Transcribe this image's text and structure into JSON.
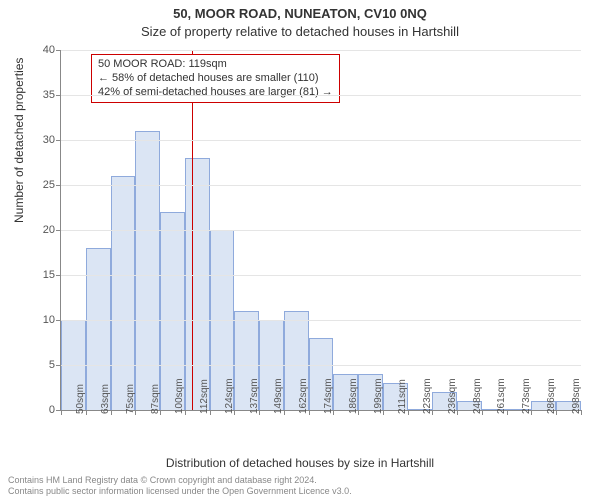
{
  "header": {
    "title": "50, MOOR ROAD, NUNEATON, CV10 0NQ",
    "subtitle": "Size of property relative to detached houses in Hartshill",
    "title_fontsize": 13,
    "subtitle_fontsize": 13
  },
  "chart": {
    "type": "histogram",
    "ylabel": "Number of detached properties",
    "xlabel": "Distribution of detached houses by size in Hartshill",
    "label_fontsize": 12,
    "ylim": [
      0,
      40
    ],
    "ytick_step": 5,
    "yticks": [
      0,
      5,
      10,
      15,
      20,
      25,
      30,
      35,
      40
    ],
    "grid_color": "#e5e5e5",
    "axis_color": "#888888",
    "background_color": "#ffffff",
    "bar_fill": "#dbe5f4",
    "bar_border": "#8faadc",
    "bar_width_ratio": 1.0,
    "categories": [
      "50sqm",
      "63sqm",
      "75sqm",
      "87sqm",
      "100sqm",
      "112sqm",
      "124sqm",
      "137sqm",
      "149sqm",
      "162sqm",
      "174sqm",
      "186sqm",
      "199sqm",
      "211sqm",
      "223sqm",
      "236sqm",
      "248sqm",
      "261sqm",
      "273sqm",
      "286sqm",
      "298sqm"
    ],
    "values": [
      10,
      18,
      26,
      31,
      22,
      28,
      20,
      11,
      10,
      11,
      8,
      4,
      4,
      3,
      0,
      2,
      1,
      0,
      0,
      1,
      1
    ]
  },
  "marker": {
    "value_sqm": 119,
    "line_color": "#cc0000",
    "line_width": 1
  },
  "annotation": {
    "lines": [
      "50 MOOR ROAD: 119sqm",
      "← 58% of detached houses are smaller (110)",
      "42% of semi-detached houses are larger (81) →"
    ],
    "border_color": "#cc0000",
    "background_color": "#ffffff",
    "fontsize": 11
  },
  "footer": {
    "line1": "Contains HM Land Registry data © Crown copyright and database right 2024.",
    "line2": "Contains public sector information licensed under the Open Government Licence v3.0.",
    "fontsize": 9,
    "color": "#888888"
  }
}
